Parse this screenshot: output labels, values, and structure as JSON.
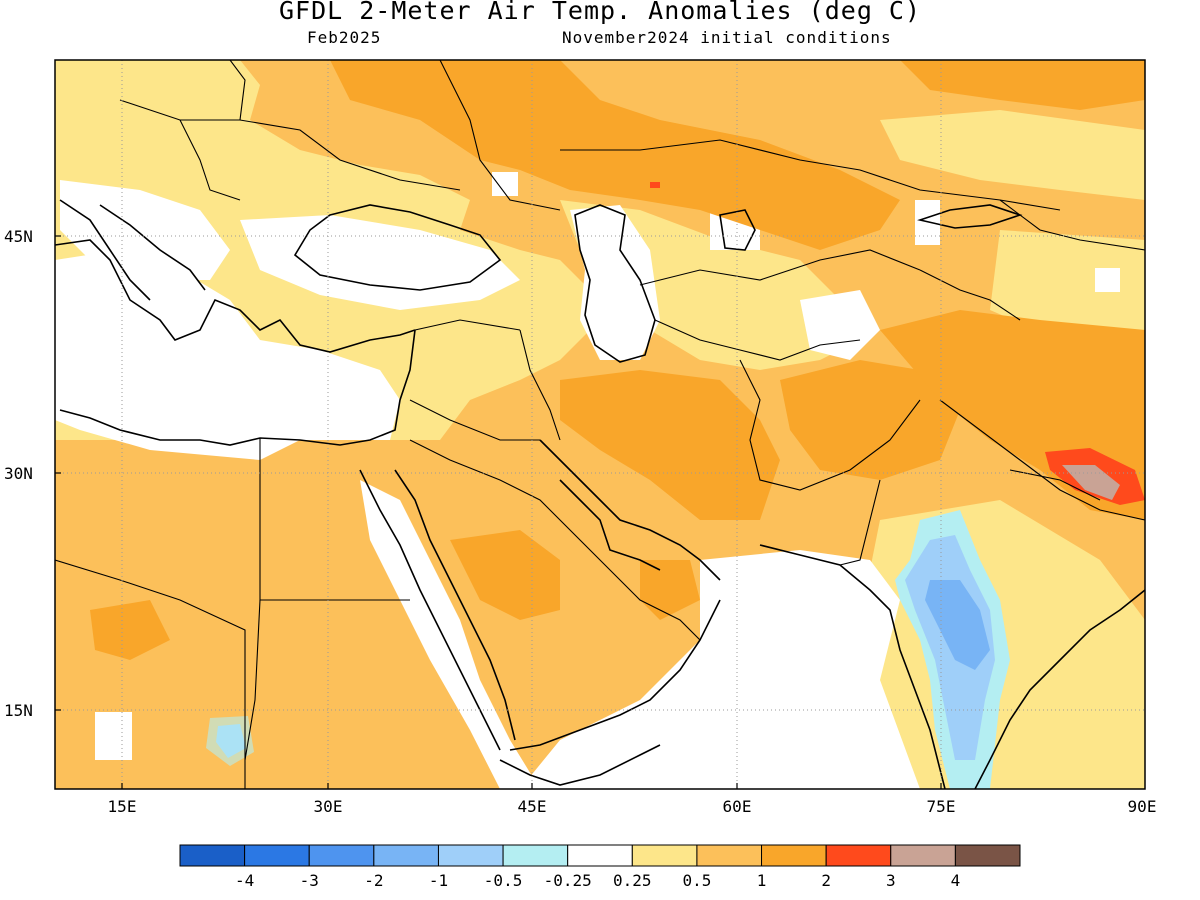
{
  "title": "GFDL 2-Meter Air Temp. Anomalies (deg C)",
  "valid_month": "Feb2025",
  "initial_conditions": "November2024 initial conditions",
  "axes": {
    "x_ticks": [
      "15E",
      "30E",
      "45E",
      "60E",
      "75E",
      "90E"
    ],
    "y_ticks": [
      "45N",
      "30N",
      "15N"
    ]
  },
  "colorbar": {
    "colors": [
      "#1a5fc8",
      "#2b78e4",
      "#4e94ef",
      "#78b4f5",
      "#9fcff9",
      "#b4eef2",
      "#ffffff",
      "#fde68a",
      "#fcc05a",
      "#f9a62a",
      "#ff4a1c",
      "#c9a395",
      "#7a5446"
    ],
    "labels": [
      "-4",
      "-3",
      "-2",
      "-1",
      "-0.5",
      "-0.25",
      "0.25",
      "0.5",
      "1",
      "2",
      "3",
      "4"
    ]
  },
  "map": {
    "lon_range": [
      10,
      90
    ],
    "lat_range": [
      9,
      55
    ],
    "colors": {
      "white": "#ffffff",
      "pale_yellow": "#fde68a",
      "light_orange": "#fcc05a",
      "orange": "#f9a62a",
      "red": "#ff4a1c",
      "taupe": "#c9a395",
      "light_blue": "#b4eef2",
      "medium_blue": "#9fcff9",
      "blue": "#78b4f5"
    }
  }
}
